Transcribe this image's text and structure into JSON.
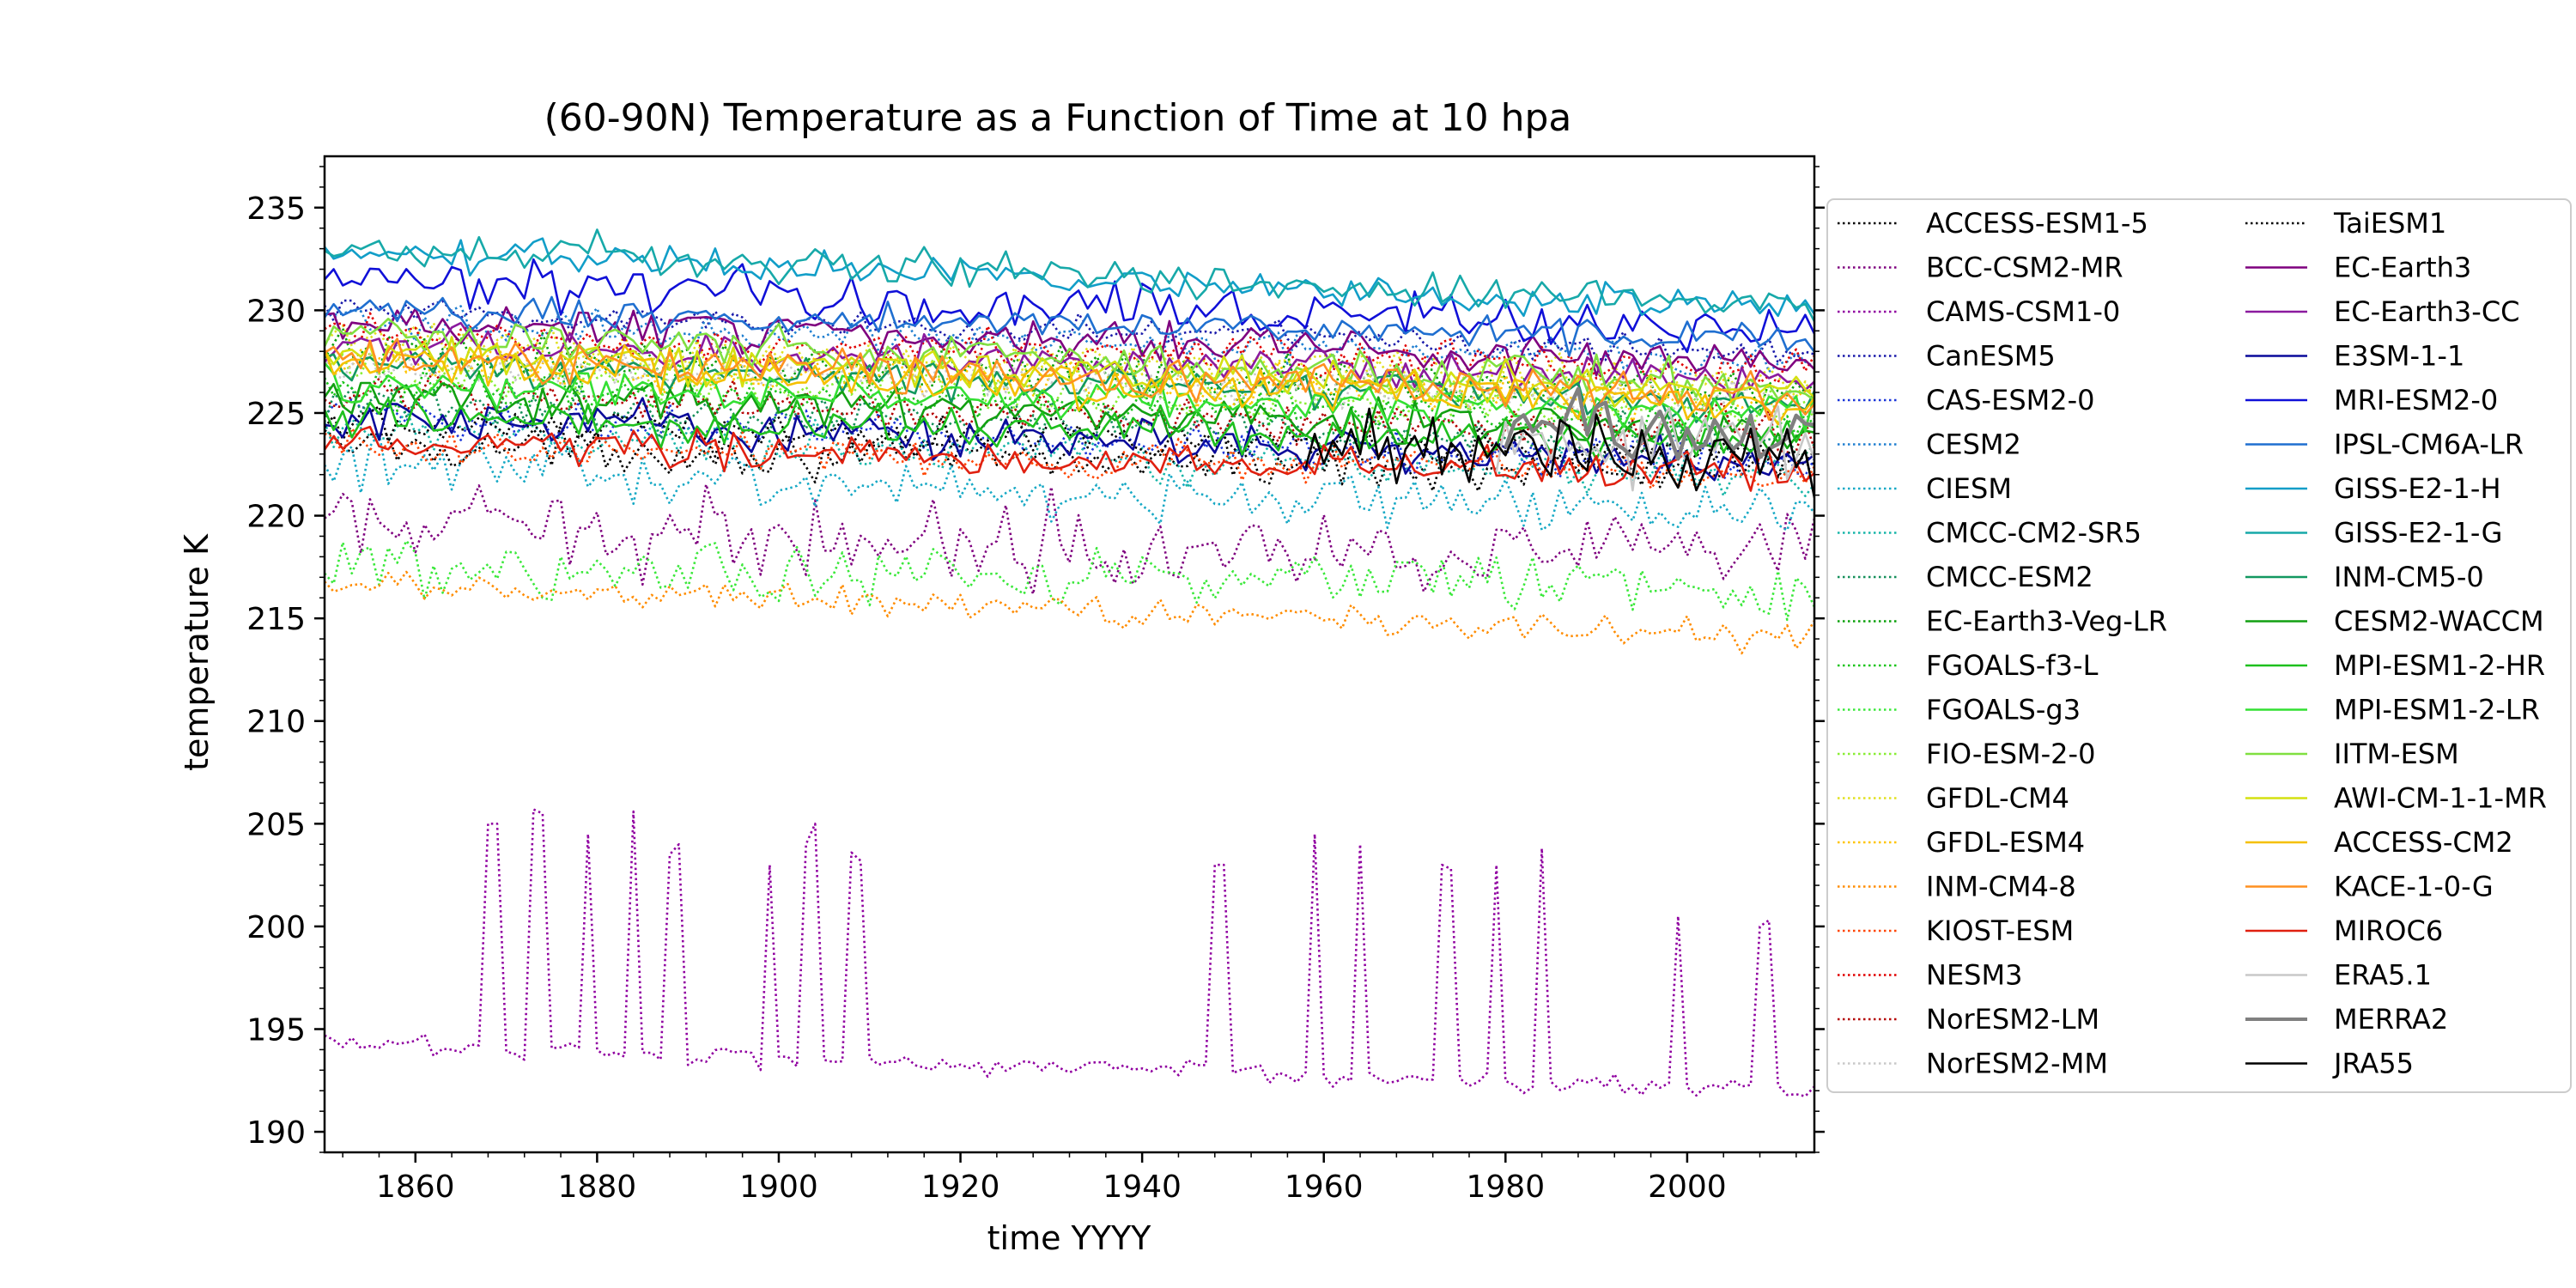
{
  "chart_data": {
    "type": "line",
    "title": "(60-90N) Temperature as a Function of Time at 10 hpa",
    "xlabel": "time YYYY",
    "ylabel": "temperature K",
    "xlim": [
      1850,
      2014
    ],
    "ylim": [
      189,
      237.5
    ],
    "x_ticks": [
      1860,
      1880,
      1900,
      1920,
      1940,
      1960,
      1980,
      2000
    ],
    "y_ticks": [
      190,
      195,
      200,
      205,
      210,
      215,
      220,
      225,
      230,
      235
    ],
    "grid": false,
    "legend_position": "outside-right",
    "series": [
      {
        "name": "ACCESS-ESM1-5",
        "color": "#000000",
        "style": "dotted",
        "start": 1850,
        "end": 2014,
        "base": 223.5,
        "trend": -1.5,
        "noise": 0.8
      },
      {
        "name": "BCC-CSM2-MR",
        "color": "#7f007f",
        "style": "dotted",
        "start": 1850,
        "end": 2014,
        "base": 219.5,
        "trend": -1.5,
        "noise": 1.5
      },
      {
        "name": "CAMS-CSM1-0",
        "color": "#9000a0",
        "style": "dotted",
        "start": 1850,
        "end": 2014,
        "base": 194.3,
        "trend": -2.3,
        "noise": 0.4,
        "spikes": [
          [
            1868,
            205
          ],
          [
            1869,
            205
          ],
          [
            1873,
            205.7
          ],
          [
            1874,
            205.5
          ],
          [
            1879,
            204.5
          ],
          [
            1884,
            205.6
          ],
          [
            1888,
            203.5
          ],
          [
            1889,
            204
          ],
          [
            1899,
            203
          ],
          [
            1903,
            204
          ],
          [
            1904,
            205
          ],
          [
            1908,
            203.6
          ],
          [
            1909,
            203.2
          ],
          [
            1948,
            203
          ],
          [
            1949,
            203
          ],
          [
            1959,
            204.5
          ],
          [
            1964,
            204
          ],
          [
            1973,
            203
          ],
          [
            1974,
            202.8
          ],
          [
            1979,
            203
          ],
          [
            1984,
            203.8
          ],
          [
            1999,
            200.5
          ],
          [
            2008,
            200
          ],
          [
            2009,
            200.3
          ]
        ]
      },
      {
        "name": "CanESM5",
        "color": "#1a1aaa",
        "style": "dotted",
        "start": 1850,
        "end": 2014,
        "base": 230,
        "trend": -2,
        "noise": 0.6
      },
      {
        "name": "CAS-ESM2-0",
        "color": "#1a35d8",
        "style": "dotted",
        "start": 1850,
        "end": 2014,
        "base": 225,
        "trend": -2.5,
        "noise": 0.8
      },
      {
        "name": "CESM2",
        "color": "#1f7fd0",
        "style": "dotted",
        "start": 1850,
        "end": 2014,
        "base": 229.5,
        "trend": -2,
        "noise": 0.6
      },
      {
        "name": "CIESM",
        "color": "#17a9c5",
        "style": "dotted",
        "start": 1850,
        "end": 2014,
        "base": 222.5,
        "trend": -2.5,
        "noise": 1
      },
      {
        "name": "CMCC-CM2-SR5",
        "color": "#17b5a8",
        "style": "dotted",
        "start": 1850,
        "end": 2014,
        "base": 224,
        "trend": -2,
        "noise": 0.8
      },
      {
        "name": "CMCC-ESM2",
        "color": "#148f5a",
        "style": "dotted",
        "start": 1850,
        "end": 2014,
        "base": 225.5,
        "trend": -2,
        "noise": 0.8
      },
      {
        "name": "EC-Earth3-Veg-LR",
        "color": "#0aa00a",
        "style": "dotted",
        "start": 1850,
        "end": 2014,
        "base": 228,
        "trend": -2,
        "noise": 0.8
      },
      {
        "name": "FGOALS-f3-L",
        "color": "#1bc41b",
        "style": "dotted",
        "start": 1850,
        "end": 2014,
        "base": 226.5,
        "trend": -2,
        "noise": 0.8
      },
      {
        "name": "FGOALS-g3",
        "color": "#3ae83a",
        "style": "dotted",
        "start": 1850,
        "end": 2014,
        "base": 217.5,
        "trend": -1,
        "noise": 1
      },
      {
        "name": "FIO-ESM-2-0",
        "color": "#88ee33",
        "style": "dotted",
        "start": 1850,
        "end": 2014,
        "base": 227,
        "trend": -2,
        "noise": 0.8
      },
      {
        "name": "GFDL-CM4",
        "color": "#e0e020",
        "style": "dotted",
        "start": 1850,
        "end": 2014,
        "base": 228.5,
        "trend": -2,
        "noise": 0.8
      },
      {
        "name": "GFDL-ESM4",
        "color": "#ffc400",
        "style": "dotted",
        "start": 1850,
        "end": 2014,
        "base": 227.5,
        "trend": -2,
        "noise": 0.8
      },
      {
        "name": "INM-CM4-8",
        "color": "#ff8c00",
        "style": "dotted",
        "start": 1850,
        "end": 2014,
        "base": 216.8,
        "trend": -2.7,
        "noise": 0.6
      },
      {
        "name": "KIOST-ESM",
        "color": "#ff4500",
        "style": "dotted",
        "start": 1850,
        "end": 2014,
        "base": 223.5,
        "trend": -1.5,
        "noise": 0.7
      },
      {
        "name": "NESM3",
        "color": "#e00000",
        "style": "dotted",
        "start": 1850,
        "end": 2014,
        "base": 229,
        "trend": -2,
        "noise": 0.7
      },
      {
        "name": "NorESM2-LM",
        "color": "#b40000",
        "style": "dotted",
        "start": 1850,
        "end": 2014,
        "base": 226,
        "trend": -2,
        "noise": 0.8
      },
      {
        "name": "NorESM2-MM",
        "color": "#c8c8c8",
        "style": "dotted",
        "start": 1850,
        "end": 2014,
        "base": 227.5,
        "trend": -2,
        "noise": 0.8
      },
      {
        "name": "TaiESM1",
        "color": "#000000",
        "style": "dotted",
        "start": 1850,
        "end": 2014,
        "base": 224.5,
        "trend": -1.5,
        "noise": 0.7
      },
      {
        "name": "EC-Earth3",
        "color": "#7f007f",
        "style": "solid",
        "start": 1850,
        "end": 2014,
        "base": 229.5,
        "trend": -2,
        "noise": 0.7
      },
      {
        "name": "EC-Earth3-CC",
        "color": "#8b1a9e",
        "style": "solid",
        "start": 1850,
        "end": 2014,
        "base": 228.5,
        "trend": -2,
        "noise": 0.7
      },
      {
        "name": "E3SM-1-1",
        "color": "#0a0a9a",
        "style": "solid",
        "start": 1850,
        "end": 2014,
        "base": 225,
        "trend": -2.5,
        "noise": 0.8
      },
      {
        "name": "MRI-ESM2-0",
        "color": "#1010d8",
        "style": "solid",
        "start": 1850,
        "end": 2014,
        "base": 231.5,
        "trend": -2.5,
        "noise": 1
      },
      {
        "name": "IPSL-CM6A-LR",
        "color": "#1f6fd0",
        "style": "solid",
        "start": 1850,
        "end": 2014,
        "base": 230,
        "trend": -1.5,
        "noise": 0.6
      },
      {
        "name": "GISS-E2-1-H",
        "color": "#119ec8",
        "style": "solid",
        "start": 1850,
        "end": 2014,
        "base": 233,
        "trend": -3,
        "noise": 0.6
      },
      {
        "name": "GISS-E2-1-G",
        "color": "#17a9a9",
        "style": "solid",
        "start": 1850,
        "end": 2014,
        "base": 233.2,
        "trend": -3,
        "noise": 0.7
      },
      {
        "name": "INM-CM5-0",
        "color": "#129860",
        "style": "solid",
        "start": 1850,
        "end": 2014,
        "base": 227.5,
        "trend": -2,
        "noise": 0.7
      },
      {
        "name": "CESM2-WACCM",
        "color": "#12a012",
        "style": "solid",
        "start": 1850,
        "end": 2014,
        "base": 226,
        "trend": -2,
        "noise": 0.8
      },
      {
        "name": "MPI-ESM1-2-HR",
        "color": "#1ec01e",
        "style": "solid",
        "start": 1850,
        "end": 2014,
        "base": 224.8,
        "trend": -1,
        "noise": 0.8
      },
      {
        "name": "MPI-ESM1-2-LR",
        "color": "#33e033",
        "style": "solid",
        "start": 1850,
        "end": 2014,
        "base": 226.5,
        "trend": -1.5,
        "noise": 0.8
      },
      {
        "name": "IITM-ESM",
        "color": "#80e040",
        "style": "solid",
        "start": 1850,
        "end": 2014,
        "base": 228.8,
        "trend": -2.5,
        "noise": 0.8
      },
      {
        "name": "AWI-CM-1-1-MR",
        "color": "#d4e010",
        "style": "solid",
        "start": 1850,
        "end": 2014,
        "base": 228,
        "trend": -2,
        "noise": 0.8
      },
      {
        "name": "ACCESS-CM2",
        "color": "#f5c000",
        "style": "solid",
        "start": 1850,
        "end": 2014,
        "base": 227.5,
        "trend": -2,
        "noise": 0.8
      },
      {
        "name": "KACE-1-0-G",
        "color": "#ff9020",
        "style": "solid",
        "start": 1850,
        "end": 2014,
        "base": 227.8,
        "trend": -2,
        "noise": 0.8
      },
      {
        "name": "MIROC6",
        "color": "#e02010",
        "style": "solid",
        "start": 1850,
        "end": 2014,
        "base": 223.5,
        "trend": -1.5,
        "noise": 0.7
      },
      {
        "name": "ERA5.1",
        "color": "#c8c8c8",
        "style": "solid",
        "start": 1979,
        "end": 2014,
        "base": 224.5,
        "trend": -1,
        "noise": 1.6
      },
      {
        "name": "MERRA2",
        "color": "#808080",
        "style": "solid",
        "start": 1980,
        "end": 2014,
        "base": 224.5,
        "trend": -1,
        "noise": 1.6
      },
      {
        "name": "JRA55",
        "color": "#000000",
        "style": "solid",
        "start": 1958,
        "end": 2014,
        "base": 224,
        "trend": -1,
        "noise": 1.2
      }
    ]
  }
}
